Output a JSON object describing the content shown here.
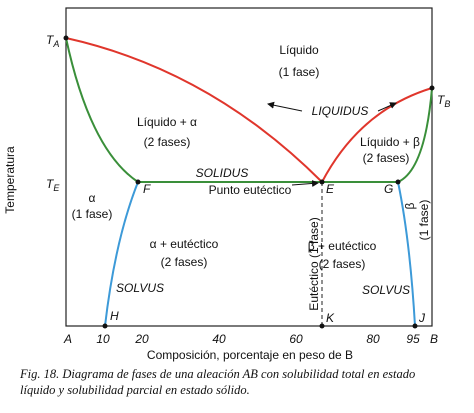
{
  "axes": {
    "y_label": "Temperatura",
    "x_label": "Composición, porcentaje en peso de B",
    "x_ticks": [
      "A",
      "10",
      "20",
      "40",
      "60",
      "80",
      "95",
      "B"
    ]
  },
  "temperatures": [
    {
      "symbol": "T",
      "sub": "A"
    },
    {
      "symbol": "T",
      "sub": "E"
    },
    {
      "symbol": "T",
      "sub": "B"
    }
  ],
  "points": [
    "F",
    "E",
    "G",
    "H",
    "K",
    "J"
  ],
  "curves": [
    "LIQUIDUS",
    "SOLIDUS",
    "SOLVUS",
    "SOLVUS"
  ],
  "eutectic_point": "Punto eutéctico",
  "regions": [
    {
      "name": "Líquido",
      "phases": "(1 fase)"
    },
    {
      "name": "Líquido + α",
      "phases": "(2 fases)"
    },
    {
      "name": "Líquido + β",
      "phases": "(2 fases)"
    },
    {
      "name": "α",
      "phases": "(1 fase)"
    },
    {
      "name": "α + eutéctico",
      "phases": "(2 fases)"
    },
    {
      "name": "β + eutéctico",
      "phases": "(2 fases)"
    },
    {
      "name": "Eutéctico (1 fase)"
    },
    {
      "name": "β",
      "phases": "(1 fase)"
    }
  ],
  "caption": [
    "Fig. 18. Diagrama de fases de una aleación AB con solubilidad total en estado",
    "líquido y solubilidad parcial en estado sólido."
  ]
}
